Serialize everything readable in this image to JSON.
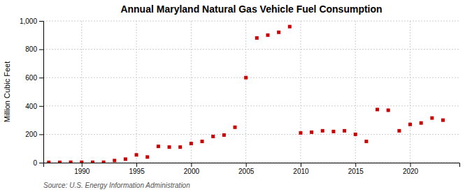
{
  "chart_data": {
    "type": "scatter",
    "title": "Annual Maryland Natural Gas Vehicle Fuel Consumption",
    "ylabel": "Million Cubic Feet",
    "source": "Source: U.S. Energy Information Administration",
    "x": [
      1987,
      1988,
      1989,
      1990,
      1991,
      1992,
      1993,
      1994,
      1995,
      1996,
      1997,
      1998,
      1999,
      2000,
      2001,
      2002,
      2003,
      2004,
      2005,
      2006,
      2007,
      2008,
      2009,
      2010,
      2011,
      2012,
      2013,
      2014,
      2015,
      2016,
      2017,
      2018,
      2019,
      2020,
      2021,
      2022,
      2023
    ],
    "values": [
      2,
      2,
      3,
      3,
      3,
      3,
      15,
      25,
      55,
      40,
      115,
      110,
      110,
      135,
      150,
      185,
      195,
      250,
      600,
      880,
      900,
      920,
      960,
      210,
      215,
      225,
      220,
      225,
      200,
      150,
      375,
      370,
      225,
      270,
      280,
      315,
      300
    ],
    "color": "#cc0000",
    "marker": "square",
    "xlim": [
      1986.5,
      2024.5
    ],
    "xticks": [
      1990,
      1995,
      2000,
      2005,
      2010,
      2015,
      2020
    ],
    "ylim": [
      0,
      1000
    ],
    "yticks": [
      0,
      200,
      400,
      600,
      800,
      {
        "value": 1000,
        "label": "1,000"
      }
    ],
    "grid": true
  }
}
